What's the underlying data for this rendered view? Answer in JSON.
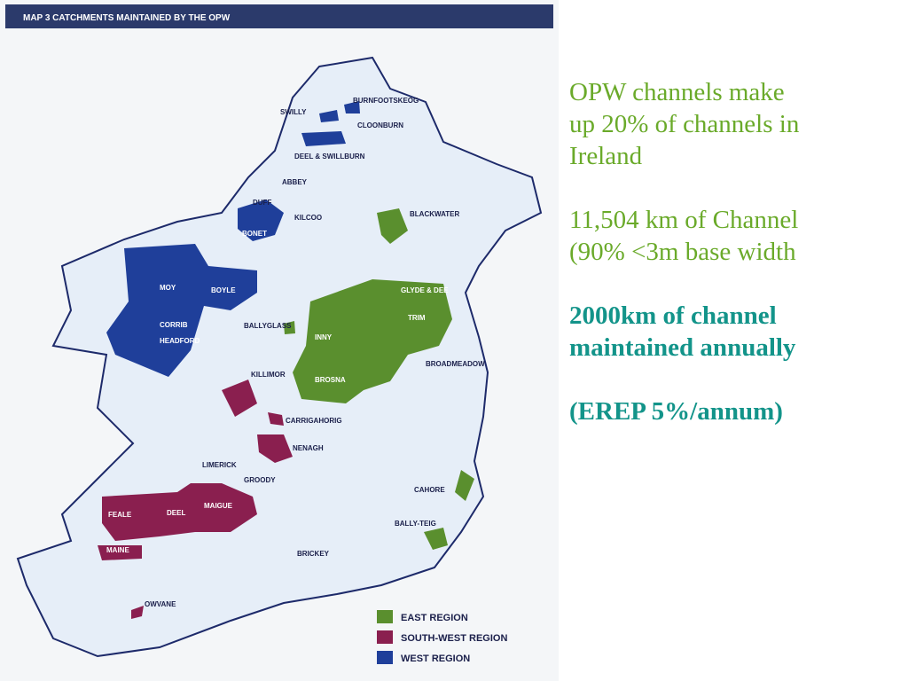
{
  "header": {
    "title": "MAP 3  CATCHMENTS MAINTAINED BY THE OPW"
  },
  "map": {
    "labels": [
      "SWILLY",
      "BURNFOOTSKEOG",
      "CLOONBURN",
      "DEEL & SWILLBURN",
      "ABBEY",
      "DUFF",
      "KILCOO",
      "BONET",
      "BLACKWATER",
      "MOY",
      "BOYLE",
      "GLYDE & DEE",
      "CORRIB",
      "HEADFORD",
      "BALLYGLASS",
      "TRIM",
      "INNY",
      "BROADMEADOW",
      "KILLIMOR",
      "BROSNA",
      "CARRIGAHORIG",
      "NENAGH",
      "LIMERICK",
      "GROODY",
      "CAHORE",
      "MAIGUE",
      "FEALE",
      "DEEL",
      "BALLY-TEIG",
      "MAINE",
      "BRICKEY",
      "OWVANE"
    ],
    "legend": [
      "EAST REGION",
      "SOUTH-WEST REGION",
      "WEST REGION"
    ]
  },
  "text": {
    "paragraphs": [
      {
        "lines": [
          "OPW channels make",
          "up 20% of channels in",
          "Ireland"
        ]
      },
      {
        "lines": [
          "11,504 km of Channel",
          "(90% <3m base width"
        ]
      },
      {
        "lines": [
          "2000km of channel",
          "maintained annually"
        ]
      },
      {
        "lines": [
          "(EREP 5%/annum)"
        ]
      }
    ]
  }
}
